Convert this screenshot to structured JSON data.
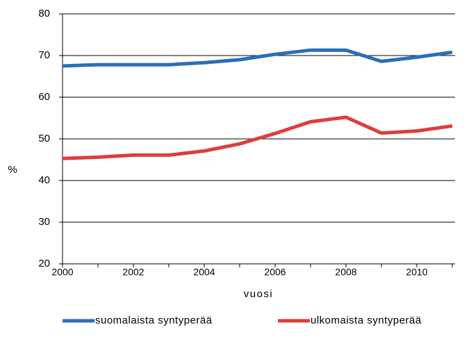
{
  "chart_data": {
    "type": "line",
    "x": [
      2000,
      2001,
      2002,
      2003,
      2004,
      2005,
      2006,
      2007,
      2008,
      2009,
      2010,
      2011
    ],
    "series": [
      {
        "name": "suomalaista syntyperää",
        "color": "#2a6ebb",
        "values": [
          67.5,
          67.8,
          67.8,
          67.8,
          68.3,
          69.0,
          70.3,
          71.3,
          71.3,
          68.6,
          69.6,
          70.8
        ]
      },
      {
        "name": "ulkomaista syntyperää",
        "color": "#e03c3c",
        "values": [
          45.3,
          45.6,
          46.1,
          46.1,
          47.1,
          48.8,
          51.3,
          54.1,
          55.2,
          51.4,
          51.9,
          53.1
        ]
      }
    ],
    "xlabel": "vuosi",
    "ylabel": "%",
    "xlim": [
      2000,
      2011
    ],
    "xticks": [
      2000,
      2002,
      2004,
      2006,
      2008,
      2010
    ],
    "ylim": [
      20,
      80
    ],
    "yticks": [
      20,
      30,
      40,
      50,
      60,
      70,
      80
    ],
    "grid": true,
    "legend": "bottom"
  }
}
